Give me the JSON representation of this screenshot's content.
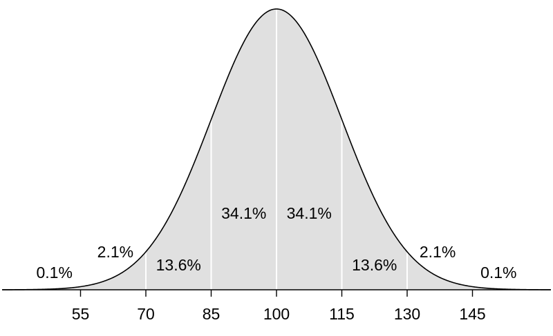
{
  "chart_data": {
    "type": "area",
    "distribution": "normal",
    "mean": 100,
    "sd": 15,
    "xlim": [
      37,
      163
    ],
    "shaded_range": [
      50,
      150
    ],
    "fill_color": "#e0e0e0",
    "line_color": "#000000",
    "divider_color": "#ffffff",
    "dividers": [
      70,
      85,
      100,
      115,
      130
    ],
    "ticks": [
      55,
      70,
      85,
      100,
      115,
      130,
      145
    ],
    "tick_labels": [
      "55",
      "70",
      "85",
      "100",
      "115",
      "130",
      "145"
    ],
    "region_labels": [
      {
        "text": "0.1%",
        "x": 49
      },
      {
        "text": "2.1%",
        "x": 63
      },
      {
        "text": "13.6%",
        "x": 77.5
      },
      {
        "text": "34.1%",
        "x": 92.5
      },
      {
        "text": "34.1%",
        "x": 107.5
      },
      {
        "text": "13.6%",
        "x": 122.5
      },
      {
        "text": "2.1%",
        "x": 137
      },
      {
        "text": "0.1%",
        "x": 151
      }
    ],
    "grid": false,
    "legend": "none"
  }
}
